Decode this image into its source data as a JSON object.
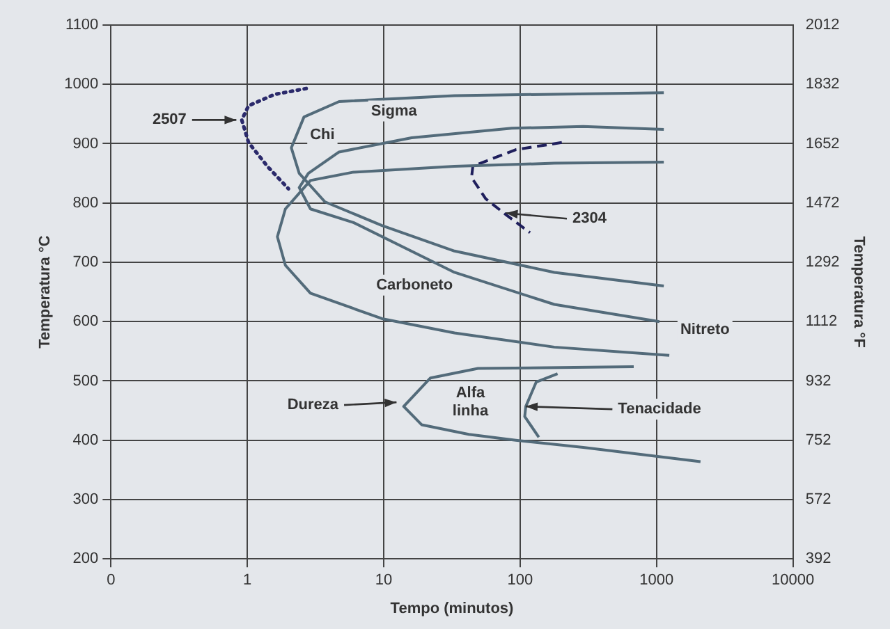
{
  "chart_data": {
    "type": "line",
    "xlabel": "Tempo (minutos)",
    "ylabel": "Temperatura °C",
    "y2label": "Temperatura °F",
    "log": "x",
    "grid": true,
    "legend": false,
    "xlim": [
      0.1,
      10000
    ],
    "xticks": [
      {
        "value": 0.1,
        "label": "0"
      },
      1,
      10,
      100,
      1000,
      10000
    ],
    "ylim": [
      200,
      1100
    ],
    "yticks": [
      200,
      300,
      400,
      500,
      600,
      700,
      800,
      900,
      1000,
      1100
    ],
    "y2lim": [
      392,
      2012
    ],
    "y2ticks": [
      392,
      572,
      752,
      932,
      1112,
      1292,
      1472,
      1652,
      1832,
      2012
    ],
    "series": [
      {
        "color": "#536b7a",
        "line_style": "solid",
        "x": [
          1130,
          33,
          4.7,
          2.6,
          2.1,
          2.4,
          3.7,
          9.7,
          33,
          178,
          1130
        ],
        "values": [
          986,
          981,
          971,
          945,
          893,
          850,
          802,
          762,
          719,
          683,
          660
        ]
      },
      {
        "color": "#536b7a",
        "line_style": "solid",
        "x": [
          1130,
          290,
          87,
          16,
          4.7,
          2.8,
          2.4,
          2.9,
          6,
          33,
          178,
          1050
        ],
        "values": [
          924,
          929,
          926,
          910,
          886,
          850,
          826,
          790,
          767,
          683,
          629,
          600
        ]
      },
      {
        "color": "#536b7a",
        "line_style": "solid",
        "x": [
          1130,
          178,
          33,
          6,
          2.9,
          1.9,
          1.66,
          1.9,
          2.9,
          9.7,
          33,
          178,
          1240
        ],
        "values": [
          869,
          867,
          862,
          852,
          838,
          790,
          743,
          695,
          648,
          605,
          581,
          557,
          543
        ]
      },
      {
        "color": "#2b2a6b",
        "line_style": "dotted",
        "x": [
          2.7,
          1.58,
          1.02,
          0.91,
          1.02,
          1.4,
          2.0
        ],
        "values": [
          993,
          983,
          964,
          940,
          902,
          862,
          824
        ]
      },
      {
        "color": "#1f1f5c",
        "line_style": "dashed",
        "x": [
          202,
          93,
          45,
          44,
          56,
          80,
          118
        ],
        "values": [
          902,
          890,
          862,
          843,
          807,
          779,
          750
        ]
      },
      {
        "color": "#536b7a",
        "line_style": "solid",
        "x": [
          680,
          49,
          22,
          14,
          19,
          42,
          93,
          290,
          2100
        ],
        "values": [
          524,
          521,
          505,
          457,
          426,
          410,
          400,
          388,
          364
        ]
      },
      {
        "color": "#536b7a",
        "line_style": "solid",
        "x": [
          188,
          131,
          110,
          108,
          137
        ],
        "values": [
          512,
          498,
          457,
          440,
          405
        ]
      }
    ],
    "annotations": [
      "Sigma",
      "Chi",
      "Carboneto",
      "Nitreto",
      "Alfa\nlinha",
      {
        "text": "2507",
        "x": 0.87,
        "y": 940
      },
      {
        "text": "2304",
        "x": 75,
        "y": 783
      },
      {
        "text": "Dureza",
        "x": 13,
        "y": 464
      },
      {
        "text": "Tenacidade",
        "x": 105,
        "y": 457
      }
    ]
  }
}
